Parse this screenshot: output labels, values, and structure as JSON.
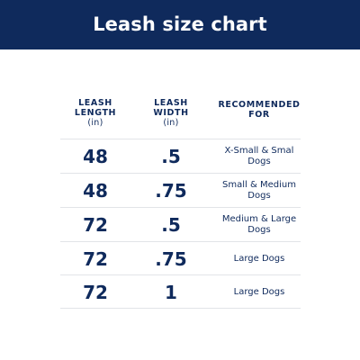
{
  "header": {
    "title": "Leash size chart"
  },
  "table": {
    "columns": [
      {
        "label": "LEASH\nLENGTH",
        "unit": "(in)"
      },
      {
        "label": "LEASH\nWIDTH",
        "unit": "(in)"
      },
      {
        "label": "RECOMMENDED\nFOR",
        "unit": ""
      }
    ],
    "rows": [
      {
        "length": "48",
        "width": ".5",
        "recommended": "X-Small & Smal\nDogs"
      },
      {
        "length": "48",
        "width": ".75",
        "recommended": "Small & Medium\nDogs"
      },
      {
        "length": "72",
        "width": ".5",
        "recommended": "Medium & Large\nDogs"
      },
      {
        "length": "72",
        "width": ".75",
        "recommended": "Large Dogs"
      },
      {
        "length": "72",
        "width": "1",
        "recommended": "Large Dogs"
      }
    ]
  },
  "colors": {
    "brand_navy": "#0f2a5c",
    "divider": "#e2e4e8",
    "background": "#ffffff"
  }
}
